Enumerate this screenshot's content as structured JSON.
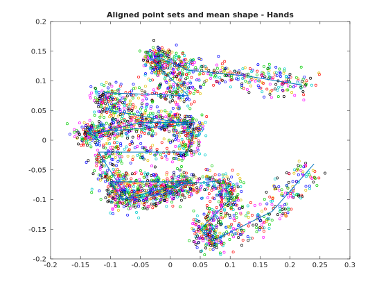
{
  "chart_data": {
    "type": "scatter",
    "title": "Aligned point sets and mean shape - Hands",
    "xlabel": "",
    "ylabel": "",
    "xlim": [
      -0.2,
      0.3
    ],
    "ylim": [
      -0.2,
      0.2
    ],
    "xticks": [
      -0.2,
      -0.15,
      -0.1,
      -0.05,
      0,
      0.05,
      0.1,
      0.15,
      0.2,
      0.25,
      0.3
    ],
    "xtick_labels": [
      "-0.2",
      "-0.15",
      "-0.1",
      "-0.05",
      "0",
      "0.05",
      "0.1",
      "0.15",
      "0.2",
      "0.25",
      "0.3"
    ],
    "yticks": [
      -0.2,
      -0.15,
      -0.1,
      -0.05,
      0,
      0.05,
      0.1,
      0.15,
      0.2
    ],
    "ytick_labels": [
      "-0.2",
      "-0.15",
      "-0.1",
      "-0.05",
      "0",
      "0.05",
      "0.1",
      "0.15",
      "0.2"
    ],
    "grid": false,
    "colors": {
      "mean_line": "#0072bd",
      "markers": [
        "#000000",
        "#ff0000",
        "#00cc00",
        "#0000ff",
        "#00cccc",
        "#ff00ff",
        "#e0c000"
      ]
    },
    "mean_shape": {
      "x": [
        0.22,
        0.13,
        0.03,
        -0.02,
        -0.03,
        0.03,
        -0.11,
        -0.1,
        0.03,
        -0.14,
        -0.13,
        -0.05,
        0.04,
        0.03,
        -0.12,
        -0.07,
        -0.01,
        0.03,
        -0.1,
        -0.08,
        0.01,
        0.09,
        0.1,
        0.05,
        0.07,
        0.17,
        0.24
      ],
      "y": [
        0.093,
        0.108,
        0.118,
        0.14,
        0.135,
        0.075,
        0.08,
        0.05,
        0.027,
        0.012,
        0.01,
        0.03,
        0.03,
        -0.02,
        -0.02,
        -0.1,
        -0.09,
        -0.07,
        -0.07,
        -0.1,
        -0.075,
        -0.068,
        -0.1,
        -0.15,
        -0.17,
        -0.12,
        -0.04
      ]
    },
    "aligned_point_sets": {
      "count": 40,
      "marker": "circle"
    }
  }
}
